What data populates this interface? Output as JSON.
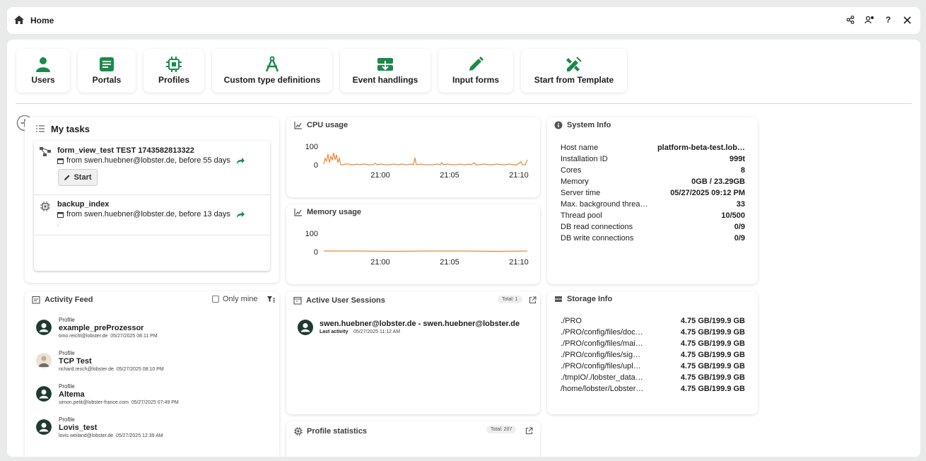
{
  "topbar": {
    "title": "Home"
  },
  "tiles": [
    {
      "label": "Users",
      "icon": "user-icon"
    },
    {
      "label": "Portals",
      "icon": "portal-icon"
    },
    {
      "label": "Profiles",
      "icon": "chip-icon"
    },
    {
      "label": "Custom type definitions",
      "icon": "compass-icon"
    },
    {
      "label": "Event handlings",
      "icon": "event-icon"
    },
    {
      "label": "Input forms",
      "icon": "pencil-icon"
    },
    {
      "label": "Start from Template",
      "icon": "template-icon"
    }
  ],
  "tasks": {
    "title": "My tasks",
    "items": [
      {
        "name": "form_view_test TEST 1743582813322",
        "from": "from swen.huebner@lobster.de, before 55 days",
        "button": "Start"
      },
      {
        "name": "backup_index",
        "from": "from swen.huebner@lobster.de, before 13 days",
        "extra": "."
      }
    ]
  },
  "cpu": {
    "title": "CPU usage",
    "y_ticks": [
      "100",
      "0"
    ],
    "x_ticks": [
      "21:00",
      "21:05",
      "21:10"
    ]
  },
  "memory": {
    "title": "Memory usage",
    "y_ticks": [
      "100",
      "0"
    ],
    "x_ticks": [
      "21:00",
      "21:05",
      "21:10"
    ]
  },
  "system_info": {
    "title": "System Info",
    "rows": [
      {
        "label": "Host name",
        "value": "platform-beta-test.lob…"
      },
      {
        "label": "Installation ID",
        "value": "999t"
      },
      {
        "label": "Cores",
        "value": "8"
      },
      {
        "label": "Memory",
        "value": "0GB / 23.29GB"
      },
      {
        "label": "Server time",
        "value": "05/27/2025 09:12 PM"
      },
      {
        "label": "Max. background threa…",
        "value": "33"
      },
      {
        "label": "Thread pool",
        "value": "10/500"
      },
      {
        "label": "DB read connections",
        "value": "0/9"
      },
      {
        "label": "DB write connections",
        "value": "0/9"
      }
    ]
  },
  "activity": {
    "title": "Activity Feed",
    "only_mine": "Only mine",
    "items": [
      {
        "kind": "Profile",
        "name": "example_preProzessor",
        "user": "timo.reichl@lobster.de",
        "time": "05/27/2025 08:11 PM"
      },
      {
        "kind": "Profile",
        "name": "TCP Test",
        "user": "richard.resch@lobster.de",
        "time": "05/27/2025 08:10 PM"
      },
      {
        "kind": "Profile",
        "name": "Altema",
        "user": "simon.petit@lobster-france.com",
        "time": "05/27/2025 07:49 PM"
      },
      {
        "kind": "Profile",
        "name": "Lovis_test",
        "user": "lovis.weiland@lobster.de",
        "time": "05/27/2025 12:39 AM"
      }
    ]
  },
  "sessions": {
    "title": "Active User Sessions",
    "total": "Total: 1",
    "items": [
      {
        "name": "swen.huebner@lobster.de - swen.huebner@lobster.de",
        "label": "Last activity",
        "time": "05/27/2025 11:12 AM"
      }
    ]
  },
  "storage": {
    "title": "Storage Info",
    "rows": [
      {
        "path": "./PRO",
        "value": "4.75 GB/199.9 GB"
      },
      {
        "path": "./PRO/config/files/doc…",
        "value": "4.75 GB/199.9 GB"
      },
      {
        "path": "./PRO/config/files/mai…",
        "value": "4.75 GB/199.9 GB"
      },
      {
        "path": "./PRO/config/files/sig…",
        "value": "4.75 GB/199.9 GB"
      },
      {
        "path": "./PRO/config/files/upl…",
        "value": "4.75 GB/199.9 GB"
      },
      {
        "path": "./tmpIO/./lobster_data…",
        "value": "4.75 GB/199.9 GB"
      },
      {
        "path": "/home/lobster/Lobster…",
        "value": "4.75 GB/199.9 GB"
      }
    ]
  },
  "profile_stats": {
    "title": "Profile statistics",
    "total": "Total: 207"
  },
  "colors": {
    "accent": "#1a8a4a",
    "chart_line": "#e8893a",
    "dark_icon": "#1f3a30"
  }
}
